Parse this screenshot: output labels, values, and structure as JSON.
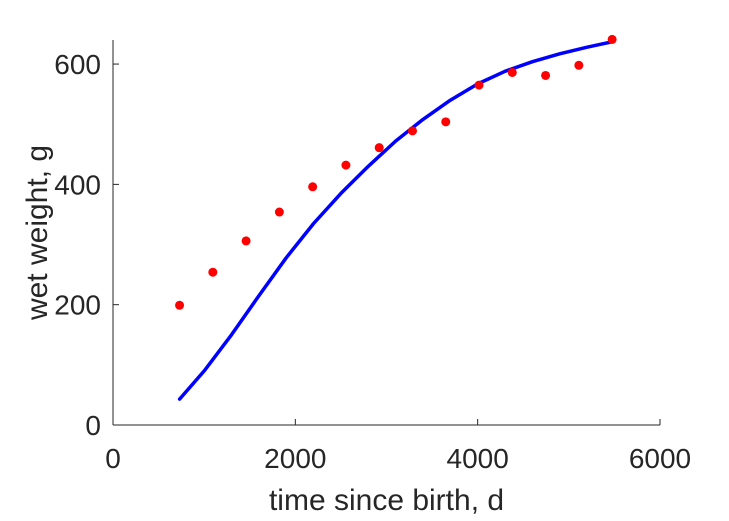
{
  "chart_data": {
    "type": "scatter",
    "title": "",
    "xlabel": "time since birth, d",
    "ylabel": "wet weight, g",
    "xlim": [
      0,
      6000
    ],
    "ylim": [
      0,
      640
    ],
    "xticks": [
      0,
      2000,
      4000,
      6000
    ],
    "yticks": [
      0,
      200,
      400,
      600
    ],
    "grid": false,
    "colors": {
      "data": "#ff0000",
      "model": "#0000ff",
      "axis": "#262626"
    },
    "series": [
      {
        "type": "scatter",
        "x": [
          730,
          1095,
          1460,
          1825,
          2190,
          2555,
          2920,
          3285,
          3650,
          4015,
          4380,
          4745,
          5110,
          5475
        ],
        "y": [
          199,
          254,
          306,
          354,
          396,
          432,
          461,
          489,
          504,
          565,
          586,
          581,
          598,
          641
        ]
      },
      {
        "type": "line",
        "x": [
          730,
          1000,
          1300,
          1600,
          1900,
          2200,
          2500,
          2800,
          3100,
          3400,
          3700,
          4000,
          4300,
          4600,
          4900,
          5200,
          5475
        ],
        "y": [
          43,
          90,
          150,
          215,
          278,
          335,
          385,
          430,
          472,
          508,
          540,
          567,
          588,
          604,
          617,
          628,
          637
        ]
      }
    ]
  }
}
